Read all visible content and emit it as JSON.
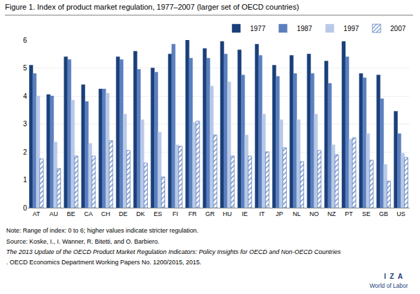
{
  "chart_data": {
    "type": "bar",
    "title": "Figure 1. Index of product market regulation, 1977–2007 (larger set of OECD countries)",
    "categories": [
      "AT",
      "AU",
      "BE",
      "CA",
      "CH",
      "DE",
      "DK",
      "ES",
      "FI",
      "FR",
      "GR",
      "HU",
      "IE",
      "IT",
      "JP",
      "NL",
      "NO",
      "NZ",
      "PT",
      "SE",
      "GB",
      "US"
    ],
    "series": [
      {
        "name": "1977",
        "color": "#1a3f7a",
        "values": [
          5.1,
          4.05,
          5.4,
          4.4,
          4.25,
          5.4,
          5.6,
          5.0,
          5.5,
          6.0,
          5.7,
          5.95,
          5.65,
          5.85,
          5.1,
          5.45,
          5.5,
          5.25,
          5.95,
          4.8,
          4.75,
          3.45
        ]
      },
      {
        "name": "1987",
        "color": "#5b7fbe",
        "values": [
          4.8,
          4.0,
          5.3,
          3.8,
          4.25,
          5.3,
          4.95,
          4.85,
          5.85,
          5.35,
          5.35,
          5.5,
          4.75,
          5.45,
          4.7,
          4.8,
          4.8,
          4.45,
          5.4,
          4.65,
          3.9,
          2.65
        ]
      },
      {
        "name": "1997",
        "color": "#b8c9e8",
        "values": [
          4.0,
          2.35,
          3.85,
          2.3,
          4.1,
          3.35,
          3.15,
          2.7,
          2.25,
          3.05,
          4.35,
          4.5,
          2.6,
          3.35,
          3.15,
          3.15,
          3.35,
          2.25,
          2.45,
          2.65,
          1.55,
          1.95
        ]
      },
      {
        "name": "2007",
        "color": "#5b7fbe",
        "marker": "hatch",
        "values": [
          1.75,
          1.4,
          1.85,
          1.85,
          2.4,
          2.05,
          1.6,
          1.1,
          2.2,
          3.1,
          2.6,
          1.85,
          1.85,
          2.0,
          2.15,
          1.65,
          2.05,
          1.9,
          2.5,
          1.7,
          0.95,
          1.8
        ]
      }
    ],
    "ylim": [
      0,
      6
    ],
    "yticks": [
      0,
      1,
      2,
      3,
      4,
      5,
      6
    ],
    "grid": true,
    "legend": "upper right",
    "annotations": [
      "Note: Range of index: 0 to 6; higher values indicate stricter regulation.",
      "Source: Koske, I., I. Wanner, R. Bitetti, and O. Barbiero.",
      "The 2013 Update of the OECD Product Market Regulation Indicators: Policy Insights for OECD and Non-OECD Countries",
      ". OECD Economics Department Working Papers No. 1200/2015, 2015.",
      "I  Z  A",
      "World of Labor"
    ]
  }
}
